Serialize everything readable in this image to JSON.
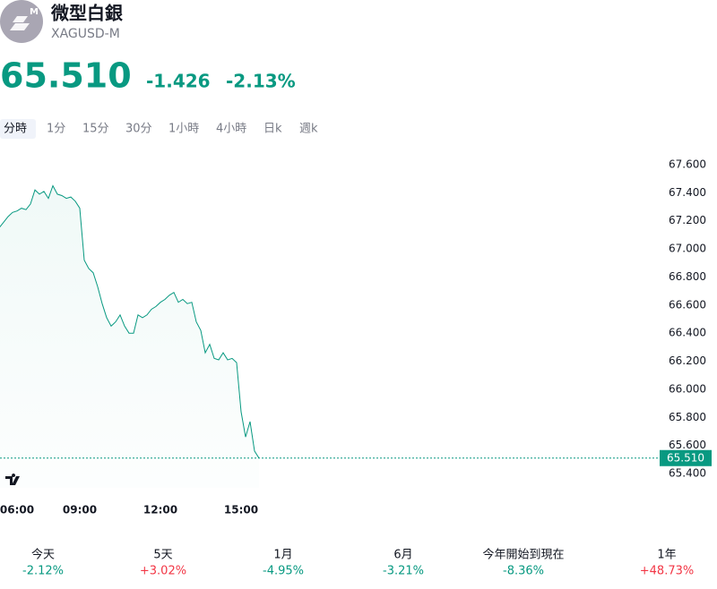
{
  "header": {
    "title": "微型白銀",
    "symbol": "XAGUSD-M",
    "icon_badge": "M"
  },
  "quote": {
    "price": "65.510",
    "change": "-1.426",
    "change_pct": "-2.13%"
  },
  "tabs": [
    "分時",
    "1分",
    "15分",
    "30分",
    "1小時",
    "4小時",
    "日k",
    "週k"
  ],
  "selected_tab": 0,
  "chart_data": {
    "type": "line",
    "x": [
      "06:00",
      "06:10",
      "06:20",
      "06:30",
      "06:40",
      "06:50",
      "07:00",
      "07:10",
      "07:20",
      "07:30",
      "07:40",
      "07:50",
      "08:00",
      "08:10",
      "08:20",
      "08:30",
      "08:40",
      "08:50",
      "09:00",
      "09:10",
      "09:20",
      "09:30",
      "09:40",
      "09:50",
      "10:00",
      "10:10",
      "10:20",
      "10:30",
      "10:40",
      "10:50",
      "11:00",
      "11:10",
      "11:20",
      "11:30",
      "11:40",
      "11:50",
      "12:00",
      "12:10",
      "12:20",
      "12:30",
      "12:40",
      "12:50",
      "13:00",
      "13:10",
      "13:20",
      "13:30",
      "13:40",
      "13:50",
      "14:00",
      "14:10",
      "14:20",
      "14:30",
      "14:40",
      "14:50",
      "15:00",
      "15:10",
      "15:20",
      "15:30",
      "15:40"
    ],
    "series": [
      {
        "name": "XAGUSD-M",
        "color": "#089981",
        "values": [
          67.15,
          67.19,
          67.23,
          67.26,
          67.27,
          67.29,
          67.28,
          67.32,
          67.42,
          67.39,
          67.41,
          67.36,
          67.45,
          67.39,
          67.38,
          67.36,
          67.37,
          67.34,
          67.29,
          66.92,
          66.86,
          66.83,
          66.73,
          66.61,
          66.51,
          66.45,
          66.48,
          66.53,
          66.45,
          66.4,
          66.4,
          66.53,
          66.51,
          66.53,
          66.57,
          66.59,
          66.62,
          66.64,
          66.67,
          66.69,
          66.62,
          66.64,
          66.61,
          66.62,
          66.48,
          66.42,
          66.26,
          66.32,
          66.22,
          66.21,
          66.26,
          66.21,
          66.22,
          66.19,
          65.84,
          65.66,
          65.77,
          65.56,
          65.51
        ]
      }
    ],
    "xlim": [
      "06:00",
      "15:40"
    ],
    "xticks": [
      "06:00",
      "09:00",
      "12:00",
      "15:00"
    ],
    "ylim": [
      65.3,
      67.7
    ],
    "yticks": [
      {
        "value": 67.6,
        "label": "67.600"
      },
      {
        "value": 67.4,
        "label": "67.400"
      },
      {
        "value": 67.2,
        "label": "67.200"
      },
      {
        "value": 67.0,
        "label": "67.000"
      },
      {
        "value": 66.8,
        "label": "66.800"
      },
      {
        "value": 66.6,
        "label": "66.600"
      },
      {
        "value": 66.4,
        "label": "66.400"
      },
      {
        "value": 66.2,
        "label": "66.200"
      },
      {
        "value": 66.0,
        "label": "66.000"
      },
      {
        "value": 65.8,
        "label": "65.800"
      },
      {
        "value": 65.6,
        "label": "65.600"
      },
      {
        "value": 65.4,
        "label": "65.400"
      }
    ],
    "last_value_label": "65.510"
  },
  "performance": [
    {
      "label": "今天",
      "value": "-2.12%"
    },
    {
      "label": "5天",
      "value": "+3.02%"
    },
    {
      "label": "1月",
      "value": "-4.95%"
    },
    {
      "label": "6月",
      "value": "-3.21%"
    },
    {
      "label": "今年開始到現在",
      "value": "-8.36%"
    },
    {
      "label": "1年",
      "value": "+48.73%"
    }
  ]
}
